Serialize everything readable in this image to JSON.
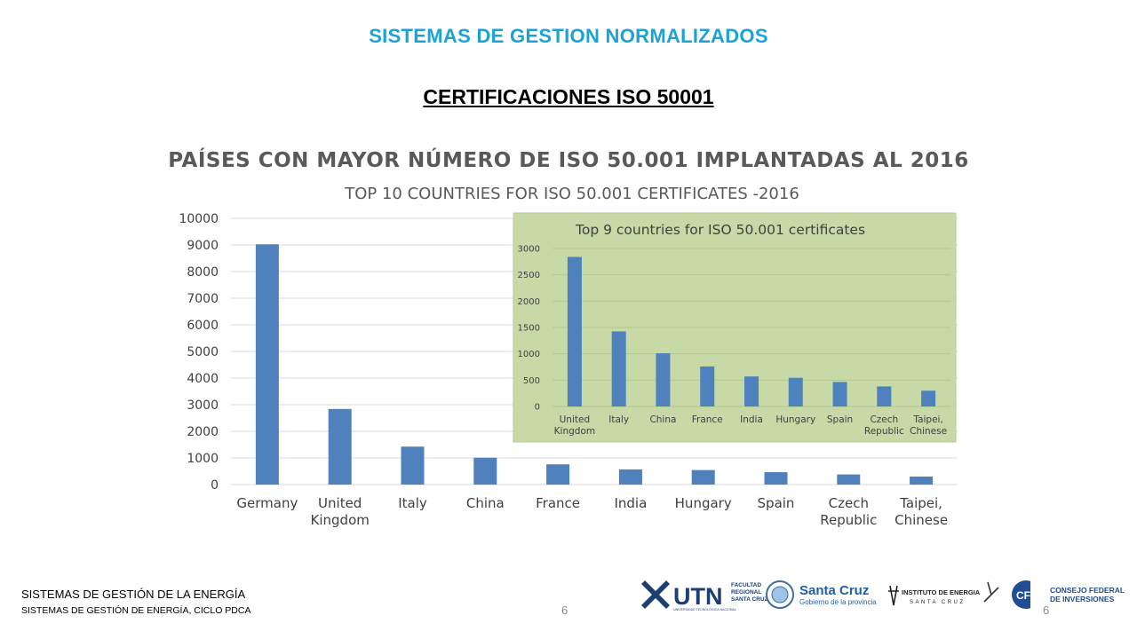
{
  "slide": {
    "header_title": "SISTEMAS DE GESTION NORMALIZADOS",
    "sub_title": "CERTIFICACIONES ISO 50001",
    "footer_line1": "SISTEMAS DE GESTIÓN DE LA ENERGÍA",
    "footer_line2": "SISTEMAS DE GESTIÓN DE ENERGÍA, CICLO PDCA",
    "page_number": "6",
    "page_number_right": "6"
  },
  "logos": {
    "utn": {
      "name": "UTN",
      "lines": [
        "FACULTAD",
        "REGIONAL",
        "SANTA CRUZ"
      ],
      "tagline": "UNIVERSIDAD TECNOLÓGICA NACIONAL"
    },
    "santa_cruz": {
      "name": "Santa Cruz",
      "tagline": "Gobierno de la provincia"
    },
    "instituto": {
      "name": "INSTITUTO DE ENERGIA",
      "tagline": "SANTA CRUZ"
    },
    "cfi": {
      "name": "CFI",
      "lines": [
        "CONSEJO FEDERAL",
        "DE INVERSIONES"
      ]
    }
  },
  "colors": {
    "accent": "#1aa3d6",
    "bar": "#4f81bd",
    "inset_bg": "#c6d9a6",
    "axis_text": "#595959"
  },
  "chart_data": [
    {
      "type": "bar",
      "title": "PAÍSES CON MAYOR NÚMERO DE ISO 50.001 IMPLANTADAS  AL 2016",
      "subtitle": "TOP 10 COUNTRIES FOR ISO 50.001 CERTIFICATES  -2016",
      "categories": [
        "Germany",
        "United Kingdom",
        "Italy",
        "China",
        "France",
        "India",
        "Hungary",
        "Spain",
        "Czech Republic",
        "Taipei, Chinese"
      ],
      "category_lines": [
        [
          "Germany"
        ],
        [
          "United",
          "Kingdom"
        ],
        [
          "Italy"
        ],
        [
          "China"
        ],
        [
          "France"
        ],
        [
          "India"
        ],
        [
          "Hungary"
        ],
        [
          "Spain"
        ],
        [
          "Czech",
          "Republic"
        ],
        [
          "Taipei,",
          "Chinese"
        ]
      ],
      "values": [
        9024,
        2840,
        1425,
        1010,
        760,
        570,
        545,
        465,
        380,
        300
      ],
      "ylim": [
        0,
        10000
      ],
      "yticks": [
        "0",
        "1000",
        "2000",
        "3000",
        "4000",
        "5000",
        "6000",
        "7000",
        "8000",
        "9000",
        "10000"
      ],
      "grid": true,
      "xlabel": "",
      "ylabel": ""
    },
    {
      "type": "bar",
      "title": "Top 9 countries for ISO 50.001 certificates",
      "categories": [
        "United Kingdom",
        "Italy",
        "China",
        "France",
        "India",
        "Hungary",
        "Spain",
        "Czech Republic",
        "Taipei, Chinese"
      ],
      "category_lines": [
        [
          "United",
          "Kingdom"
        ],
        [
          "Italy"
        ],
        [
          "China"
        ],
        [
          "France"
        ],
        [
          "India"
        ],
        [
          "Hungary"
        ],
        [
          "Spain"
        ],
        [
          "Czech",
          "Republic"
        ],
        [
          "Taipei,",
          "Chinese"
        ]
      ],
      "values": [
        2840,
        1425,
        1010,
        760,
        570,
        545,
        465,
        380,
        300
      ],
      "ylim": [
        0,
        3000
      ],
      "yticks": [
        "0",
        "500",
        "1000",
        "1500",
        "2000",
        "2500",
        "3000"
      ],
      "grid": true,
      "xlabel": "",
      "ylabel": ""
    }
  ]
}
